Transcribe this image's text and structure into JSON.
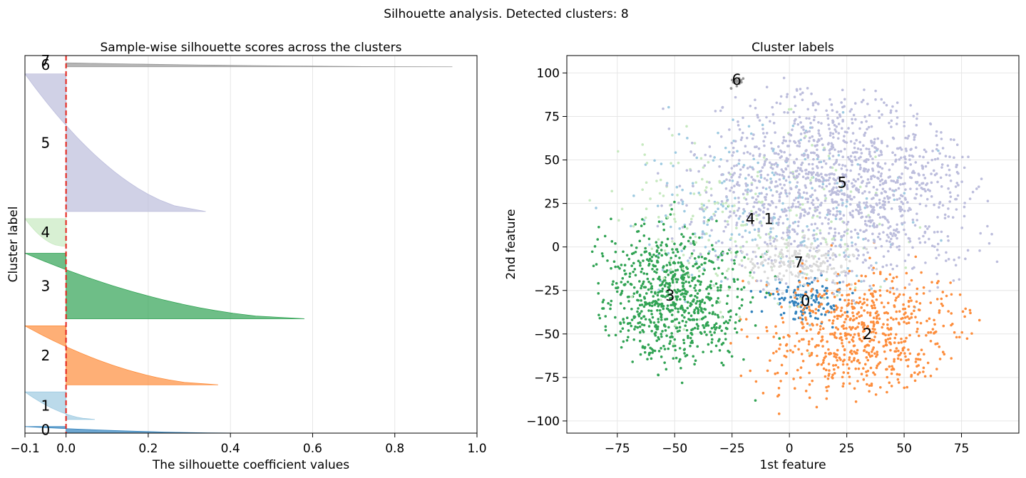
{
  "suptitle": "Silhouette analysis. Detected clusters: 8",
  "chart_data": [
    {
      "type": "area",
      "title": "Sample-wise silhouette scores across the clusters",
      "xlabel": "The silhouette coefficient values",
      "ylabel": "Cluster label",
      "xlim": [
        -0.1,
        1.0
      ],
      "xticks": [
        "−0.1",
        "0.0",
        "0.2",
        "0.4",
        "0.6",
        "0.8",
        "1.0"
      ],
      "xtick_values": [
        -0.1,
        0.0,
        0.2,
        0.4,
        0.6,
        0.8,
        1.0
      ],
      "grid": true,
      "reference_line": {
        "x": 0.0,
        "color": "#e32119",
        "style": "dashed"
      },
      "clusters": [
        {
          "label": "0",
          "color": "#3182bd",
          "max": 0.44,
          "min": -0.1,
          "size": 10
        },
        {
          "label": "1",
          "color": "#9ecae1",
          "max": 0.07,
          "min": -0.1,
          "size": 42
        },
        {
          "label": "2",
          "color": "#fd8d3c",
          "max": 0.37,
          "min": -0.1,
          "size": 90
        },
        {
          "label": "3",
          "color": "#31a354",
          "max": 0.58,
          "min": -0.1,
          "size": 100
        },
        {
          "label": "4",
          "color": "#c7e9c0",
          "max": -0.01,
          "min": -0.1,
          "size": 42
        },
        {
          "label": "5",
          "color": "#bcbddc",
          "max": 0.34,
          "min": -0.1,
          "size": 210
        },
        {
          "label": "6",
          "color": "#969696",
          "max": 0.94,
          "min": 0.0,
          "size": 6
        },
        {
          "label": "7",
          "color": "#d9d9d9",
          "max": 0.33,
          "min": -0.1,
          "size": 22
        }
      ]
    },
    {
      "type": "scatter",
      "title": "Cluster labels",
      "xlabel": "1st feature",
      "ylabel": "2nd feature",
      "xlim": [
        -97,
        100
      ],
      "ylim": [
        -107,
        110
      ],
      "xticks": [
        "−75",
        "−50",
        "−25",
        "0",
        "25",
        "50",
        "75"
      ],
      "xtick_values": [
        -75,
        -50,
        -25,
        0,
        25,
        50,
        75
      ],
      "yticks": [
        "−100",
        "−75",
        "−50",
        "−25",
        "0",
        "25",
        "50",
        "75",
        "100"
      ],
      "ytick_values": [
        -100,
        -75,
        -50,
        -25,
        0,
        25,
        50,
        75,
        100
      ],
      "grid": true,
      "cluster_labels": [
        {
          "label": "0",
          "x": 7,
          "y": -31,
          "color": "#3182bd"
        },
        {
          "label": "1",
          "x": -9,
          "y": 16,
          "color": "#9ecae1"
        },
        {
          "label": "2",
          "x": 34,
          "y": -50,
          "color": "#fd8d3c"
        },
        {
          "label": "3",
          "x": -52,
          "y": -28,
          "color": "#31a354"
        },
        {
          "label": "4",
          "x": -17,
          "y": 16,
          "color": "#c7e9c0"
        },
        {
          "label": "5",
          "x": 23,
          "y": 37,
          "color": "#bcbddc"
        },
        {
          "label": "6",
          "x": -23,
          "y": 96,
          "color": "#969696"
        },
        {
          "label": "7",
          "x": 4,
          "y": -9,
          "color": "#d9d9d9"
        }
      ]
    }
  ]
}
